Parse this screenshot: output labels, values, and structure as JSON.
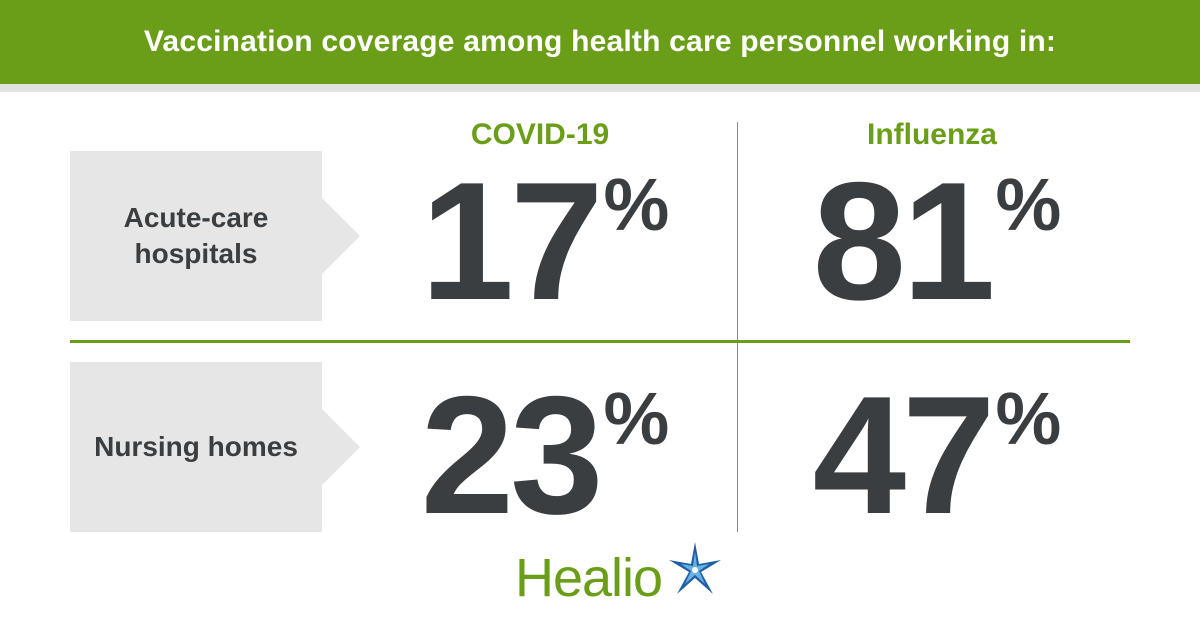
{
  "header": {
    "title": "Vaccination coverage among health care personnel working in:"
  },
  "columns": {
    "covid": "COVID-19",
    "influenza": "Influenza"
  },
  "rows": {
    "acute_care": "Acute-care hospitals",
    "nursing_homes": "Nursing homes"
  },
  "stats": {
    "acute_care_covid": "17",
    "acute_care_influenza": "81",
    "nursing_homes_covid": "23",
    "nursing_homes_influenza": "47",
    "percent_symbol": "%"
  },
  "logo": {
    "text": "Healio",
    "icon": "star-burst-icon"
  },
  "colors": {
    "brand_green": "#6a9e18",
    "text_dark": "#3a3e40",
    "label_bg": "#e6e6e6",
    "star_blue": "#1f5fa8",
    "star_light": "#6ab0e0"
  }
}
